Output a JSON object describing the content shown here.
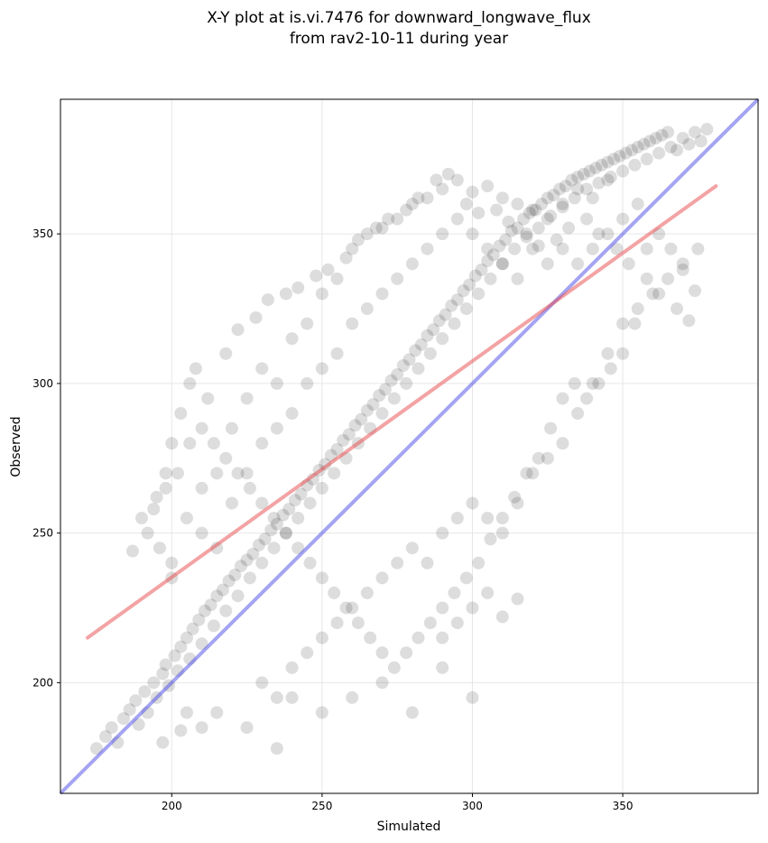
{
  "chart_data": {
    "type": "scatter",
    "title": [
      "X-Y plot at is.vi.7476 for downward_longwave_flux",
      "from rav2-10-11 during year"
    ],
    "xlabel": "Simulated",
    "ylabel": "Observed",
    "xlim": [
      163,
      395
    ],
    "ylim": [
      163,
      395
    ],
    "xticks": [
      200,
      250,
      300,
      350
    ],
    "yticks": [
      200,
      250,
      300,
      350
    ],
    "grid": true,
    "point_color": "#000000",
    "point_opacity": 0.06,
    "regression_line": {
      "color": "#e8474a",
      "x": [
        172,
        381
      ],
      "y": [
        215,
        366
      ]
    },
    "one_to_one_line": {
      "color": "#4a4ae8",
      "x": [
        163,
        395
      ],
      "y": [
        163,
        395
      ]
    },
    "points": [
      [
        175,
        178
      ],
      [
        178,
        182
      ],
      [
        180,
        185
      ],
      [
        182,
        180
      ],
      [
        184,
        188
      ],
      [
        186,
        191
      ],
      [
        188,
        194
      ],
      [
        189,
        186
      ],
      [
        191,
        197
      ],
      [
        192,
        190
      ],
      [
        194,
        200
      ],
      [
        195,
        195
      ],
      [
        197,
        203
      ],
      [
        198,
        206
      ],
      [
        199,
        199
      ],
      [
        201,
        209
      ],
      [
        202,
        204
      ],
      [
        203,
        212
      ],
      [
        205,
        215
      ],
      [
        206,
        208
      ],
      [
        207,
        218
      ],
      [
        209,
        221
      ],
      [
        210,
        213
      ],
      [
        211,
        224
      ],
      [
        213,
        226
      ],
      [
        214,
        219
      ],
      [
        215,
        229
      ],
      [
        217,
        231
      ],
      [
        218,
        224
      ],
      [
        219,
        234
      ],
      [
        221,
        236
      ],
      [
        222,
        229
      ],
      [
        223,
        239
      ],
      [
        225,
        241
      ],
      [
        226,
        235
      ],
      [
        227,
        243
      ],
      [
        229,
        246
      ],
      [
        230,
        240
      ],
      [
        231,
        248
      ],
      [
        233,
        251
      ],
      [
        234,
        245
      ],
      [
        235,
        253
      ],
      [
        237,
        256
      ],
      [
        238,
        250
      ],
      [
        239,
        258
      ],
      [
        241,
        261
      ],
      [
        242,
        255
      ],
      [
        243,
        263
      ],
      [
        245,
        266
      ],
      [
        246,
        260
      ],
      [
        247,
        268
      ],
      [
        249,
        271
      ],
      [
        250,
        265
      ],
      [
        251,
        273
      ],
      [
        253,
        276
      ],
      [
        254,
        270
      ],
      [
        255,
        278
      ],
      [
        257,
        281
      ],
      [
        258,
        275
      ],
      [
        259,
        283
      ],
      [
        261,
        286
      ],
      [
        262,
        280
      ],
      [
        263,
        288
      ],
      [
        265,
        291
      ],
      [
        266,
        285
      ],
      [
        267,
        293
      ],
      [
        269,
        296
      ],
      [
        270,
        290
      ],
      [
        271,
        298
      ],
      [
        273,
        301
      ],
      [
        274,
        295
      ],
      [
        275,
        303
      ],
      [
        277,
        306
      ],
      [
        278,
        300
      ],
      [
        279,
        308
      ],
      [
        281,
        311
      ],
      [
        282,
        305
      ],
      [
        283,
        313
      ],
      [
        285,
        316
      ],
      [
        286,
        310
      ],
      [
        287,
        318
      ],
      [
        289,
        321
      ],
      [
        290,
        315
      ],
      [
        291,
        323
      ],
      [
        293,
        326
      ],
      [
        294,
        320
      ],
      [
        295,
        328
      ],
      [
        297,
        331
      ],
      [
        298,
        325
      ],
      [
        299,
        333
      ],
      [
        301,
        336
      ],
      [
        302,
        330
      ],
      [
        303,
        338
      ],
      [
        305,
        341
      ],
      [
        306,
        335
      ],
      [
        307,
        343
      ],
      [
        309,
        346
      ],
      [
        310,
        340
      ],
      [
        311,
        348
      ],
      [
        313,
        351
      ],
      [
        314,
        345
      ],
      [
        315,
        352
      ],
      [
        317,
        355
      ],
      [
        318,
        349
      ],
      [
        319,
        357
      ],
      [
        321,
        358
      ],
      [
        322,
        352
      ],
      [
        323,
        360
      ],
      [
        325,
        362
      ],
      [
        326,
        356
      ],
      [
        327,
        363
      ],
      [
        329,
        365
      ],
      [
        330,
        359
      ],
      [
        331,
        366
      ],
      [
        333,
        368
      ],
      [
        334,
        362
      ],
      [
        335,
        369
      ],
      [
        337,
        370
      ],
      [
        338,
        365
      ],
      [
        339,
        371
      ],
      [
        341,
        372
      ],
      [
        342,
        367
      ],
      [
        343,
        373
      ],
      [
        345,
        374
      ],
      [
        346,
        369
      ],
      [
        347,
        375
      ],
      [
        349,
        376
      ],
      [
        350,
        371
      ],
      [
        351,
        377
      ],
      [
        353,
        378
      ],
      [
        354,
        373
      ],
      [
        355,
        379
      ],
      [
        357,
        380
      ],
      [
        358,
        375
      ],
      [
        359,
        381
      ],
      [
        361,
        382
      ],
      [
        362,
        377
      ],
      [
        363,
        383
      ],
      [
        365,
        384
      ],
      [
        366,
        379
      ],
      [
        368,
        378
      ],
      [
        370,
        382
      ],
      [
        372,
        380
      ],
      [
        374,
        384
      ],
      [
        376,
        381
      ],
      [
        378,
        385
      ],
      [
        200,
        240
      ],
      [
        205,
        255
      ],
      [
        210,
        265
      ],
      [
        215,
        270
      ],
      [
        220,
        285
      ],
      [
        225,
        295
      ],
      [
        230,
        305
      ],
      [
        235,
        300
      ],
      [
        240,
        315
      ],
      [
        245,
        320
      ],
      [
        250,
        330
      ],
      [
        255,
        335
      ],
      [
        260,
        345
      ],
      [
        265,
        350
      ],
      [
        270,
        352
      ],
      [
        275,
        355
      ],
      [
        280,
        360
      ],
      [
        285,
        362
      ],
      [
        290,
        365
      ],
      [
        295,
        368
      ],
      [
        300,
        364
      ],
      [
        305,
        366
      ],
      [
        310,
        362
      ],
      [
        315,
        360
      ],
      [
        320,
        358
      ],
      [
        325,
        355
      ],
      [
        330,
        360
      ],
      [
        335,
        365
      ],
      [
        340,
        362
      ],
      [
        345,
        368
      ],
      [
        210,
        250
      ],
      [
        215,
        245
      ],
      [
        220,
        260
      ],
      [
        225,
        270
      ],
      [
        230,
        280
      ],
      [
        235,
        285
      ],
      [
        240,
        290
      ],
      [
        245,
        300
      ],
      [
        250,
        305
      ],
      [
        255,
        310
      ],
      [
        260,
        320
      ],
      [
        265,
        325
      ],
      [
        270,
        330
      ],
      [
        275,
        335
      ],
      [
        280,
        340
      ],
      [
        285,
        345
      ],
      [
        290,
        350
      ],
      [
        295,
        355
      ],
      [
        300,
        350
      ],
      [
        305,
        345
      ],
      [
        310,
        340
      ],
      [
        315,
        335
      ],
      [
        320,
        345
      ],
      [
        325,
        340
      ],
      [
        330,
        345
      ],
      [
        335,
        340
      ],
      [
        340,
        345
      ],
      [
        345,
        350
      ],
      [
        350,
        355
      ],
      [
        355,
        360
      ],
      [
        230,
        200
      ],
      [
        235,
        195
      ],
      [
        240,
        205
      ],
      [
        245,
        210
      ],
      [
        250,
        215
      ],
      [
        255,
        220
      ],
      [
        260,
        225
      ],
      [
        265,
        230
      ],
      [
        270,
        235
      ],
      [
        275,
        240
      ],
      [
        280,
        245
      ],
      [
        285,
        240
      ],
      [
        290,
        250
      ],
      [
        295,
        255
      ],
      [
        300,
        260
      ],
      [
        305,
        255
      ],
      [
        310,
        250
      ],
      [
        315,
        260
      ],
      [
        320,
        270
      ],
      [
        325,
        275
      ],
      [
        330,
        280
      ],
      [
        335,
        290
      ],
      [
        340,
        300
      ],
      [
        345,
        310
      ],
      [
        350,
        320
      ],
      [
        355,
        325
      ],
      [
        360,
        330
      ],
      [
        365,
        335
      ],
      [
        370,
        340
      ],
      [
        375,
        345
      ],
      [
        290,
        215
      ],
      [
        295,
        220
      ],
      [
        300,
        225
      ],
      [
        305,
        230
      ],
      [
        310,
        222
      ],
      [
        315,
        228
      ],
      [
        300,
        195
      ],
      [
        290,
        205
      ],
      [
        280,
        190
      ],
      [
        270,
        200
      ],
      [
        260,
        195
      ],
      [
        250,
        190
      ],
      [
        240,
        195
      ],
      [
        235,
        178
      ],
      [
        225,
        185
      ],
      [
        215,
        190
      ],
      [
        210,
        185
      ],
      [
        205,
        190
      ],
      [
        197,
        180
      ],
      [
        203,
        184
      ],
      [
        187,
        244
      ],
      [
        190,
        255
      ],
      [
        195,
        262
      ],
      [
        198,
        270
      ],
      [
        200,
        280
      ],
      [
        203,
        290
      ],
      [
        206,
        300
      ],
      [
        208,
        305
      ],
      [
        212,
        295
      ],
      [
        218,
        310
      ],
      [
        222,
        318
      ],
      [
        228,
        322
      ],
      [
        232,
        328
      ],
      [
        238,
        330
      ],
      [
        242,
        332
      ],
      [
        248,
        336
      ],
      [
        252,
        338
      ],
      [
        258,
        342
      ],
      [
        262,
        348
      ],
      [
        268,
        352
      ],
      [
        272,
        355
      ],
      [
        278,
        358
      ],
      [
        282,
        362
      ],
      [
        288,
        368
      ],
      [
        292,
        370
      ],
      [
        298,
        360
      ],
      [
        302,
        357
      ],
      [
        308,
        358
      ],
      [
        312,
        354
      ],
      [
        318,
        350
      ],
      [
        322,
        346
      ],
      [
        328,
        348
      ],
      [
        332,
        352
      ],
      [
        338,
        355
      ],
      [
        342,
        350
      ],
      [
        348,
        345
      ],
      [
        352,
        340
      ],
      [
        358,
        335
      ],
      [
        362,
        330
      ],
      [
        368,
        325
      ],
      [
        372,
        321
      ],
      [
        374,
        331
      ],
      [
        370,
        338
      ],
      [
        366,
        345
      ],
      [
        362,
        350
      ],
      [
        358,
        345
      ],
      [
        354,
        320
      ],
      [
        350,
        310
      ],
      [
        346,
        305
      ],
      [
        342,
        300
      ],
      [
        338,
        295
      ],
      [
        334,
        300
      ],
      [
        330,
        295
      ],
      [
        326,
        285
      ],
      [
        322,
        275
      ],
      [
        318,
        270
      ],
      [
        314,
        262
      ],
      [
        310,
        255
      ],
      [
        306,
        248
      ],
      [
        302,
        240
      ],
      [
        298,
        235
      ],
      [
        294,
        230
      ],
      [
        290,
        225
      ],
      [
        286,
        220
      ],
      [
        282,
        215
      ],
      [
        278,
        210
      ],
      [
        274,
        205
      ],
      [
        270,
        210
      ],
      [
        266,
        215
      ],
      [
        262,
        220
      ],
      [
        258,
        225
      ],
      [
        254,
        230
      ],
      [
        250,
        235
      ],
      [
        246,
        240
      ],
      [
        242,
        245
      ],
      [
        238,
        250
      ],
      [
        234,
        255
      ],
      [
        230,
        260
      ],
      [
        226,
        265
      ],
      [
        222,
        270
      ],
      [
        218,
        275
      ],
      [
        214,
        280
      ],
      [
        210,
        285
      ],
      [
        206,
        280
      ],
      [
        202,
        270
      ],
      [
        198,
        265
      ],
      [
        194,
        258
      ],
      [
        192,
        250
      ],
      [
        196,
        245
      ],
      [
        200,
        235
      ]
    ]
  }
}
